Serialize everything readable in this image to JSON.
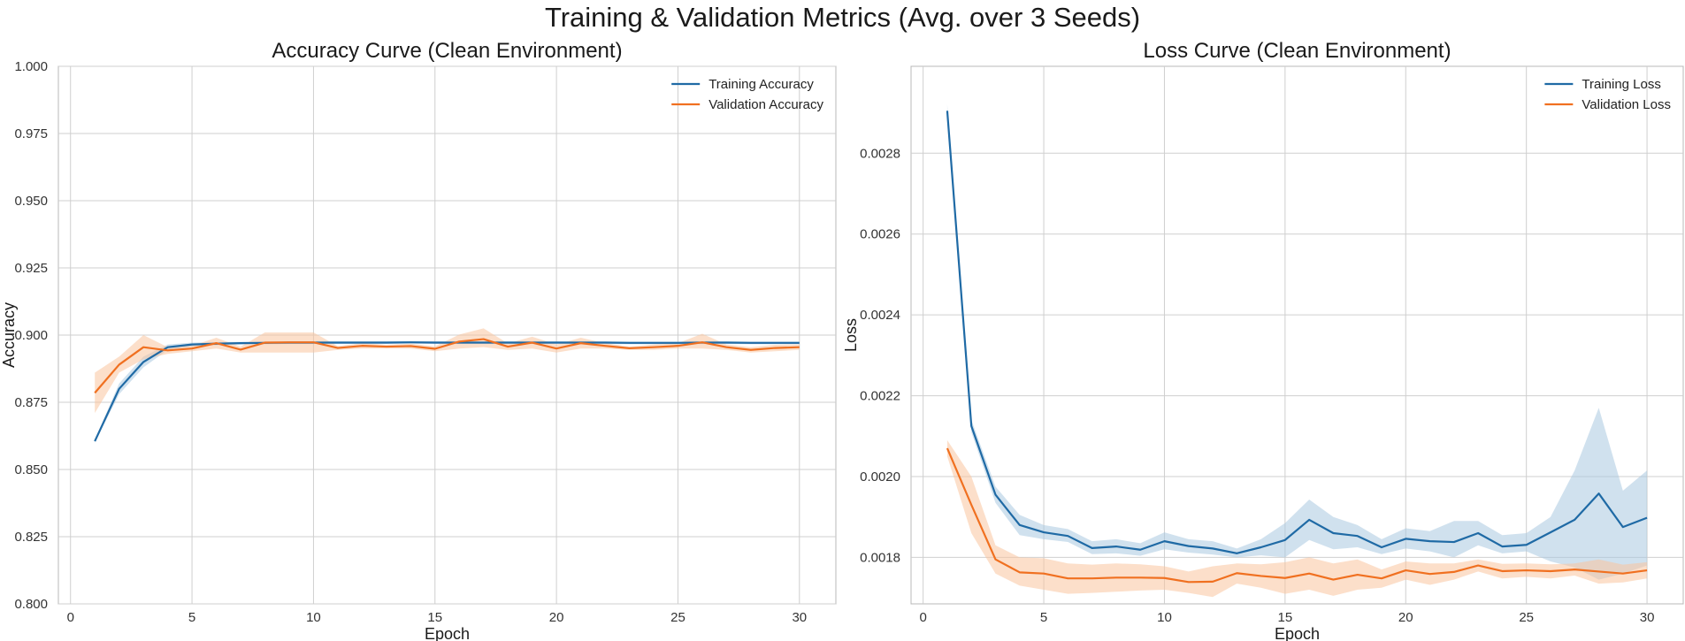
{
  "figure": {
    "suptitle": "Training & Validation Metrics (Avg. over 3 Seeds)"
  },
  "colors": {
    "training": "#1f6aa5",
    "validation": "#f07020",
    "training_band": "#a9c8e0",
    "validation_band": "#f9c49f",
    "grid": "#cfcfcf",
    "frame": "#b8b8b8"
  },
  "chart_data": [
    {
      "type": "line",
      "title": "Accuracy Curve (Clean Environment)",
      "xlabel": "Epoch",
      "ylabel": "Accuracy",
      "xlim": [
        -0.5,
        31.5
      ],
      "ylim": [
        0.8,
        1.0
      ],
      "xticks": [
        0,
        5,
        10,
        15,
        20,
        25,
        30
      ],
      "yticks": [
        0.8,
        0.825,
        0.85,
        0.875,
        0.9,
        0.925,
        0.95,
        0.975,
        1.0
      ],
      "ytick_labels": [
        "0.800",
        "0.825",
        "0.850",
        "0.875",
        "0.900",
        "0.925",
        "0.950",
        "0.975",
        "1.000"
      ],
      "grid": true,
      "legend_position": "top-right",
      "x": [
        1,
        2,
        3,
        4,
        5,
        6,
        7,
        8,
        9,
        10,
        11,
        12,
        13,
        14,
        15,
        16,
        17,
        18,
        19,
        20,
        21,
        22,
        23,
        24,
        25,
        26,
        27,
        28,
        29,
        30
      ],
      "series": [
        {
          "name": "Training Accuracy",
          "color": "training",
          "values": [
            0.8605,
            0.88,
            0.89,
            0.8955,
            0.8965,
            0.8968,
            0.897,
            0.8971,
            0.8972,
            0.8972,
            0.8972,
            0.8972,
            0.8972,
            0.8973,
            0.8972,
            0.8972,
            0.8972,
            0.8972,
            0.8972,
            0.8972,
            0.8972,
            0.8972,
            0.8971,
            0.8971,
            0.8971,
            0.8972,
            0.8972,
            0.8971,
            0.8971,
            0.8971
          ],
          "band_lower": [
            0.86,
            0.878,
            0.888,
            0.8945,
            0.8958,
            0.8962,
            0.8965,
            0.8966,
            0.8967,
            0.8967,
            0.8967,
            0.8967,
            0.8967,
            0.8968,
            0.8967,
            0.8967,
            0.8967,
            0.8967,
            0.8967,
            0.8967,
            0.8967,
            0.8967,
            0.8966,
            0.8966,
            0.8966,
            0.8967,
            0.8967,
            0.8966,
            0.8966,
            0.8966
          ],
          "band_upper": [
            0.861,
            0.882,
            0.892,
            0.8965,
            0.8972,
            0.8974,
            0.8975,
            0.8976,
            0.8977,
            0.8977,
            0.8977,
            0.8977,
            0.8977,
            0.8978,
            0.8977,
            0.8977,
            0.8977,
            0.8977,
            0.8977,
            0.8977,
            0.8977,
            0.8977,
            0.8976,
            0.8976,
            0.8976,
            0.8977,
            0.8977,
            0.8976,
            0.8976,
            0.8976
          ]
        },
        {
          "name": "Validation Accuracy",
          "color": "validation",
          "values": [
            0.8785,
            0.889,
            0.8955,
            0.8943,
            0.895,
            0.897,
            0.8946,
            0.8972,
            0.8973,
            0.8973,
            0.8952,
            0.896,
            0.8957,
            0.8959,
            0.8949,
            0.8976,
            0.8985,
            0.8957,
            0.8972,
            0.895,
            0.897,
            0.896,
            0.8951,
            0.8955,
            0.896,
            0.8973,
            0.8955,
            0.8945,
            0.8952,
            0.8955
          ],
          "band_lower": [
            0.871,
            0.886,
            0.891,
            0.893,
            0.894,
            0.895,
            0.8935,
            0.8935,
            0.8935,
            0.8935,
            0.8945,
            0.895,
            0.895,
            0.895,
            0.894,
            0.895,
            0.8955,
            0.8945,
            0.895,
            0.8935,
            0.895,
            0.895,
            0.8945,
            0.8945,
            0.895,
            0.895,
            0.8945,
            0.8935,
            0.894,
            0.8945
          ],
          "band_upper": [
            0.886,
            0.892,
            0.9,
            0.8955,
            0.896,
            0.899,
            0.8957,
            0.901,
            0.901,
            0.901,
            0.8959,
            0.897,
            0.8964,
            0.8968,
            0.8958,
            0.9002,
            0.9025,
            0.8969,
            0.8994,
            0.8965,
            0.899,
            0.897,
            0.8957,
            0.8965,
            0.897,
            0.9005,
            0.8965,
            0.8955,
            0.8964,
            0.8965
          ]
        }
      ]
    },
    {
      "type": "line",
      "title": "Loss Curve (Clean Environment)",
      "xlabel": "Epoch",
      "ylabel": "Loss",
      "xlim": [
        -0.5,
        31.5
      ],
      "ylim": [
        0.001685,
        0.003015
      ],
      "xticks": [
        0,
        5,
        10,
        15,
        20,
        25,
        30
      ],
      "yticks": [
        0.0018,
        0.002,
        0.0022,
        0.0024,
        0.0026,
        0.0028
      ],
      "ytick_labels": [
        "0.0018",
        "0.0020",
        "0.0022",
        "0.0024",
        "0.0026",
        "0.0028"
      ],
      "grid": true,
      "legend_position": "top-right",
      "x": [
        1,
        2,
        3,
        4,
        5,
        6,
        7,
        8,
        9,
        10,
        11,
        12,
        13,
        14,
        15,
        16,
        17,
        18,
        19,
        20,
        21,
        22,
        23,
        24,
        25,
        26,
        27,
        28,
        29,
        30
      ],
      "series": [
        {
          "name": "Training Loss",
          "color": "training",
          "values": [
            0.002905,
            0.002125,
            0.001955,
            0.00188,
            0.001862,
            0.001853,
            0.001823,
            0.001827,
            0.001819,
            0.00184,
            0.001828,
            0.001822,
            0.00181,
            0.001825,
            0.001843,
            0.001893,
            0.00186,
            0.001853,
            0.001825,
            0.001846,
            0.00184,
            0.001838,
            0.00186,
            0.001827,
            0.001831,
            0.001862,
            0.001893,
            0.001958,
            0.001875,
            0.001898
          ],
          "band_lower": [
            0.00289,
            0.00211,
            0.001935,
            0.001855,
            0.001845,
            0.001838,
            0.001808,
            0.00181,
            0.001804,
            0.00182,
            0.001812,
            0.001807,
            0.0018,
            0.001805,
            0.0018,
            0.001843,
            0.00182,
            0.001825,
            0.001808,
            0.001822,
            0.001815,
            0.0018,
            0.00183,
            0.00181,
            0.001815,
            0.00179,
            0.001775,
            0.001745,
            0.00176,
            0.00178
          ],
          "band_upper": [
            0.00292,
            0.00214,
            0.001975,
            0.001905,
            0.00188,
            0.00187,
            0.00184,
            0.001845,
            0.001835,
            0.001862,
            0.001845,
            0.00184,
            0.001822,
            0.001845,
            0.001885,
            0.001943,
            0.0019,
            0.00188,
            0.001845,
            0.001872,
            0.001865,
            0.00189,
            0.00189,
            0.001855,
            0.00186,
            0.0019,
            0.002015,
            0.00217,
            0.001965,
            0.002015
          ]
        },
        {
          "name": "Validation Loss",
          "color": "validation",
          "values": [
            0.00207,
            0.00193,
            0.001795,
            0.001763,
            0.00176,
            0.001748,
            0.001748,
            0.00175,
            0.00175,
            0.001749,
            0.001739,
            0.00174,
            0.001761,
            0.001754,
            0.001749,
            0.00176,
            0.001745,
            0.001757,
            0.001748,
            0.001768,
            0.001759,
            0.001764,
            0.00178,
            0.001766,
            0.001768,
            0.001766,
            0.00177,
            0.001765,
            0.00176,
            0.001768
          ],
          "band_lower": [
            0.00205,
            0.00186,
            0.00176,
            0.00173,
            0.00172,
            0.00171,
            0.001712,
            0.001715,
            0.001718,
            0.00172,
            0.001712,
            0.001702,
            0.001735,
            0.001725,
            0.00171,
            0.00172,
            0.001705,
            0.00172,
            0.001725,
            0.001745,
            0.001732,
            0.001745,
            0.001765,
            0.001748,
            0.001752,
            0.001748,
            0.001755,
            0.001735,
            0.001738,
            0.001748
          ],
          "band_upper": [
            0.00209,
            0.002,
            0.00183,
            0.0018,
            0.001798,
            0.001785,
            0.001782,
            0.001785,
            0.001783,
            0.001778,
            0.001765,
            0.001778,
            0.001785,
            0.001783,
            0.001788,
            0.0018,
            0.001785,
            0.001795,
            0.00177,
            0.00179,
            0.001785,
            0.001785,
            0.001795,
            0.001784,
            0.001785,
            0.001783,
            0.001785,
            0.001795,
            0.001782,
            0.001788
          ]
        }
      ]
    }
  ]
}
